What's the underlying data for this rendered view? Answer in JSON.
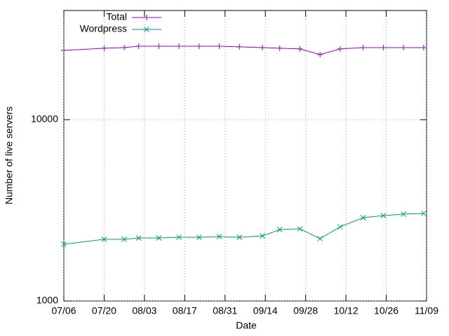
{
  "chart_data": {
    "type": "line",
    "xlabel": "Date",
    "ylabel": "Number of live servers",
    "x": [
      "07/06",
      "07/20",
      "07/27",
      "08/01",
      "08/08",
      "08/15",
      "08/22",
      "08/29",
      "09/05",
      "09/13",
      "09/19",
      "09/26",
      "10/03",
      "10/10",
      "10/18",
      "10/25",
      "11/01",
      "11/08"
    ],
    "xlim": [
      "07/06",
      "11/09"
    ],
    "xticks": [
      "07/06",
      "07/20",
      "08/03",
      "08/17",
      "08/31",
      "09/14",
      "09/28",
      "10/12",
      "10/26",
      "11/09"
    ],
    "ylim": [
      1000,
      40000
    ],
    "yticks": [
      1000,
      10000
    ],
    "log_y": true,
    "grid": true,
    "legend": "top-left",
    "series": [
      {
        "name": "Total",
        "color": "#9400d3",
        "marker": "plus",
        "values": [
          24100,
          24770,
          24980,
          25430,
          25430,
          25430,
          25430,
          25430,
          25210,
          24980,
          24770,
          24550,
          22860,
          24550,
          24980,
          24980,
          24980,
          24980
        ]
      },
      {
        "name": "Wordpress",
        "color": "#009e73",
        "marker": "cross",
        "values": [
          2055,
          2188,
          2188,
          2226,
          2226,
          2246,
          2246,
          2265,
          2246,
          2286,
          2476,
          2500,
          2207,
          2564,
          2880,
          2958,
          3013,
          3039
        ]
      }
    ]
  }
}
